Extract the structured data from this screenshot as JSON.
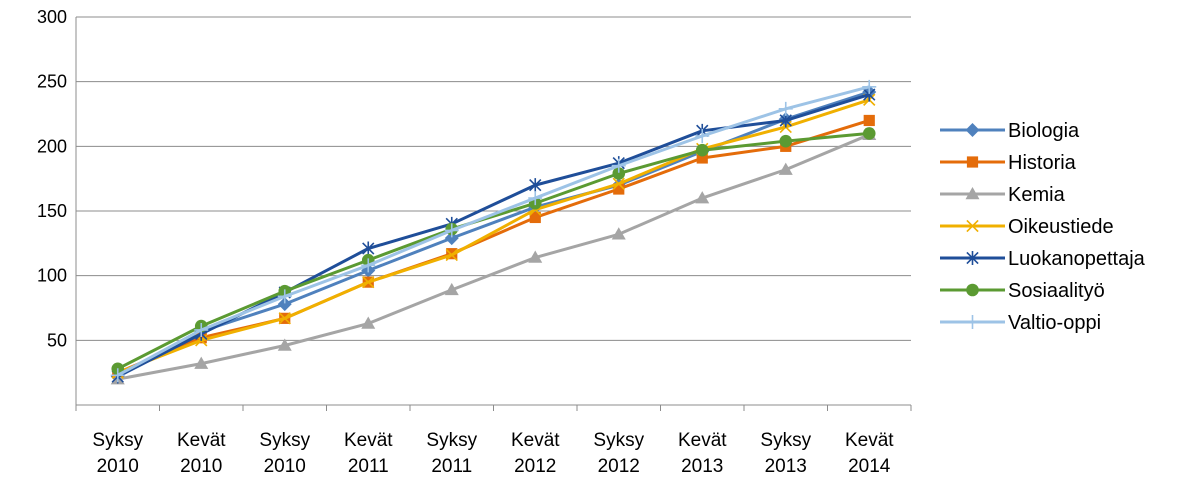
{
  "chart_data": {
    "type": "line",
    "title": "",
    "xlabel": "",
    "ylabel": "",
    "categories": [
      [
        "Syksy",
        "2010"
      ],
      [
        "Kevät",
        "2010"
      ],
      [
        "Syksy",
        "2010"
      ],
      [
        "Kevät",
        "2011"
      ],
      [
        "Syksy",
        "2011"
      ],
      [
        "Kevät",
        "2012"
      ],
      [
        "Syksy",
        "2012"
      ],
      [
        "Kevät",
        "2013"
      ],
      [
        "Syksy",
        "2013"
      ],
      [
        "Kevät",
        "2014"
      ]
    ],
    "ylim": [
      0,
      300
    ],
    "yticks": [
      50,
      100,
      150,
      200,
      250,
      300
    ],
    "grid": true,
    "legend_position": "right",
    "series": [
      {
        "name": "Biologia",
        "color": "#4F81BD",
        "marker": "diamond",
        "values": [
          22,
          57,
          78,
          104,
          129,
          153,
          170,
          196,
          221,
          242
        ]
      },
      {
        "name": "Historia",
        "color": "#E46C0A",
        "marker": "square",
        "values": [
          25,
          52,
          67,
          95,
          117,
          145,
          167,
          191,
          200,
          220
        ]
      },
      {
        "name": "Kemia",
        "color": "#A5A5A5",
        "marker": "triangle",
        "values": [
          20,
          32,
          46,
          63,
          89,
          114,
          132,
          160,
          182,
          209
        ]
      },
      {
        "name": "Oikeustiede",
        "color": "#F0B000",
        "marker": "x",
        "values": [
          25,
          50,
          67,
          95,
          116,
          151,
          171,
          198,
          215,
          236
        ]
      },
      {
        "name": "Luokanopettaja",
        "color": "#1F4E99",
        "marker": "star",
        "values": [
          22,
          55,
          87,
          121,
          140,
          170,
          187,
          212,
          220,
          240
        ]
      },
      {
        "name": "Sosiaalityö",
        "color": "#5B9A32",
        "marker": "circle",
        "values": [
          28,
          61,
          88,
          112,
          136,
          156,
          179,
          197,
          204,
          210
        ]
      },
      {
        "name": "Valtio-oppi",
        "color": "#9DC3E6",
        "marker": "plus",
        "values": [
          23,
          58,
          84,
          108,
          135,
          160,
          185,
          208,
          229,
          246
        ]
      }
    ]
  }
}
